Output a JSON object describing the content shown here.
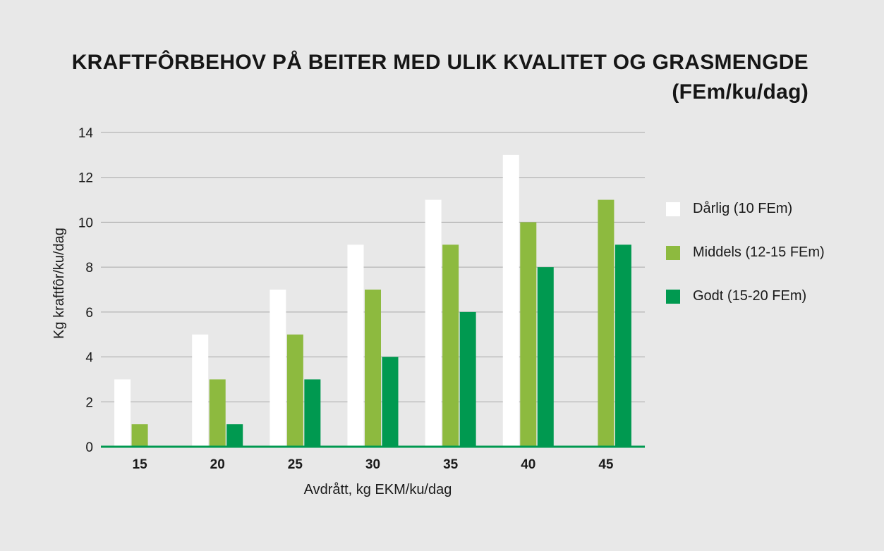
{
  "chart_data": {
    "type": "bar",
    "title": "KRAFTFÔRBEHOV PÅ BEITER MED ULIK KVALITET OG GRASMENGDE",
    "subtitle": "(FEm/ku/dag)",
    "xlabel": "Avdrått, kg EKM/ku/dag",
    "ylabel": "Kg kraftfôr/ku/dag",
    "categories": [
      "15",
      "20",
      "25",
      "30",
      "35",
      "40",
      "45"
    ],
    "ylim": [
      0,
      14
    ],
    "yticks": [
      "0",
      "2",
      "4",
      "6",
      "8",
      "10",
      "12",
      "14"
    ],
    "grid": true,
    "legend_position": "right",
    "series": [
      {
        "name": "Dårlig (10 FEm)",
        "color": "#ffffff",
        "values": [
          3,
          5,
          7,
          9,
          11,
          13,
          0
        ]
      },
      {
        "name": "Middels (12-15 FEm)",
        "color": "#8dba3f",
        "values": [
          1,
          3,
          5,
          7,
          9,
          10,
          11
        ]
      },
      {
        "name": "Godt (15-20 FEm)",
        "color": "#009950",
        "values": [
          0,
          1,
          3,
          4,
          6,
          8,
          9
        ]
      }
    ]
  }
}
